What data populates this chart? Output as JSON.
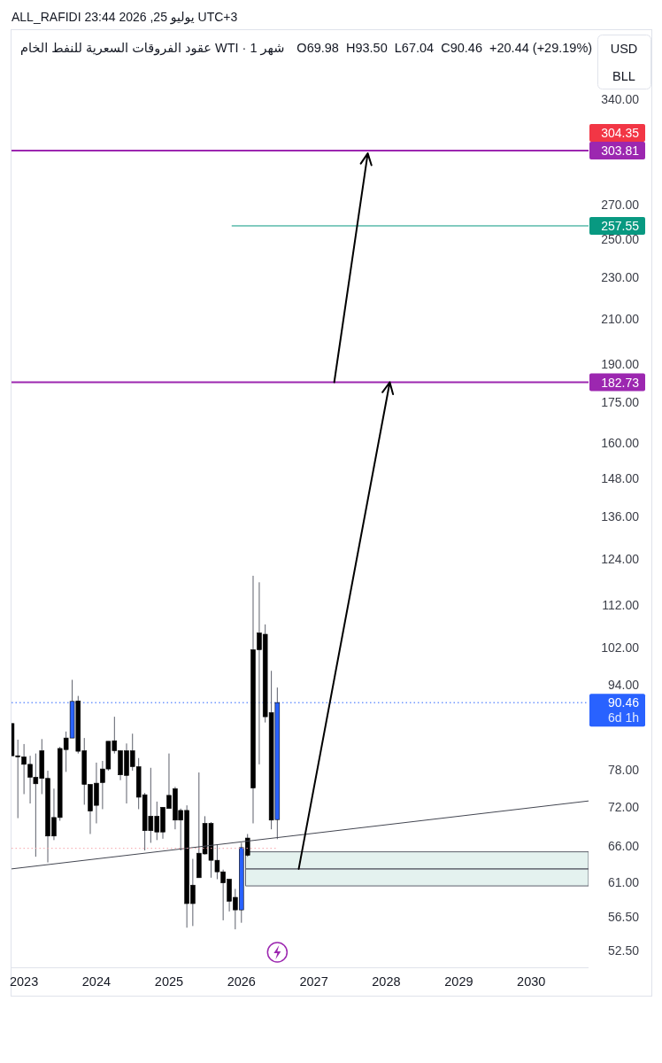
{
  "chart_data": {
    "type": "candlestick",
    "title": "عقود الفروقات السعرية للنفط الخام WTI · 1 شهر",
    "subtitle": "ALL_RAFIDI يوليو 25, 2026 23:44 UTC+3",
    "ylabel": "USD\nBLL",
    "annotations": [
      "O69.98  H93.50  L67.04  C90.46  +20.44 (+29.19%)",
      "304.35"
    ],
    "x": [
      "2022-11",
      "2022-12",
      "2023-01",
      "2023-02",
      "2023-03",
      "2023-04",
      "2023-05",
      "2023-06",
      "2023-07",
      "2023-08",
      "2023-09",
      "2023-10",
      "2023-11",
      "2023-12",
      "2024-01",
      "2024-02",
      "2024-03",
      "2024-04",
      "2024-05",
      "2024-06",
      "2024-07",
      "2024-08",
      "2024-09",
      "2024-10",
      "2024-11",
      "2024-12",
      "2025-01",
      "2025-02",
      "2025-03",
      "2025-04",
      "2025-05",
      "2025-06",
      "2025-07",
      "2025-08",
      "2025-09",
      "2025-10",
      "2025-11",
      "2025-12",
      "2026-01",
      "2026-02",
      "2026-03",
      "2026-04",
      "2026-05",
      "2026-06",
      "2026-07"
    ],
    "ohlc": [
      [
        86.4,
        86.4,
        80.5,
        80.5
      ],
      [
        80.5,
        83.4,
        70.2,
        80.3
      ],
      [
        80.3,
        82.6,
        74.0,
        79.0
      ],
      [
        79.0,
        80.5,
        72.5,
        76.8
      ],
      [
        76.8,
        80.9,
        64.5,
        75.7
      ],
      [
        81.4,
        83.5,
        74.0,
        76.6
      ],
      [
        76.6,
        77.9,
        63.7,
        67.5
      ],
      [
        70.3,
        74.9,
        66.9,
        67.5
      ],
      [
        81.8,
        82.1,
        69.8,
        70.3
      ],
      [
        83.7,
        84.9,
        77.7,
        81.6
      ],
      [
        83.7,
        95.1,
        83.7,
        90.7
      ],
      [
        90.8,
        91.8,
        80.9,
        81.3
      ],
      [
        81.4,
        83.7,
        72.3,
        75.6
      ],
      [
        75.6,
        75.6,
        67.8,
        71.3
      ],
      [
        75.8,
        79.3,
        69.4,
        72.2
      ],
      [
        78.2,
        79.6,
        71.6,
        75.9
      ],
      [
        83.1,
        83.1,
        77.9,
        78.2
      ],
      [
        83.2,
        87.7,
        80.9,
        81.4
      ],
      [
        81.4,
        81.5,
        76.3,
        77.2
      ],
      [
        81.4,
        82.7,
        72.5,
        77.1
      ],
      [
        81.4,
        84.5,
        77.9,
        78.6
      ],
      [
        78.6,
        80.1,
        71.6,
        73.5
      ],
      [
        73.9,
        74.2,
        65.4,
        68.3
      ],
      [
        70.5,
        78.4,
        66.5,
        68.3
      ],
      [
        70.5,
        72.8,
        66.9,
        68.1
      ],
      [
        71.9,
        71.9,
        67.1,
        68.1
      ],
      [
        73.8,
        80.9,
        71.7,
        71.7
      ],
      [
        74.9,
        75.2,
        68.5,
        69.9
      ],
      [
        71.4,
        71.7,
        65.4,
        69.9
      ],
      [
        71.4,
        72.2,
        55.2,
        58.2
      ],
      [
        60.6,
        64.2,
        55.4,
        58.2
      ],
      [
        65.0,
        77.6,
        61.6,
        61.6
      ],
      [
        69.4,
        70.5,
        64.8,
        64.9
      ],
      [
        69.4,
        69.6,
        61.6,
        64.0
      ],
      [
        64.0,
        66.3,
        61.4,
        62.4
      ],
      [
        62.4,
        62.7,
        56.1,
        60.9
      ],
      [
        61.4,
        61.4,
        57.2,
        58.5
      ],
      [
        59.0,
        60.1,
        55.0,
        57.4
      ],
      [
        57.4,
        66.5,
        55.8,
        65.8
      ],
      [
        67.2,
        67.8,
        64.5,
        64.7
      ],
      [
        101.6,
        119.5,
        69.4,
        75.0
      ],
      [
        105.4,
        117.8,
        79.0,
        101.6
      ],
      [
        105.1,
        107.4,
        86.6,
        87.7
      ],
      [
        88.5,
        97.0,
        68.5,
        69.9
      ],
      [
        69.98,
        93.5,
        67.04,
        90.46
      ]
    ],
    "colors": [
      "#000000",
      "#000000",
      "#000000",
      "#000000",
      "#000000",
      "#000000",
      "#000000",
      "#000000",
      "#000000",
      "#000000",
      "#2962ff",
      "#000000",
      "#000000",
      "#000000",
      "#000000",
      "#000000",
      "#000000",
      "#000000",
      "#000000",
      "#000000",
      "#000000",
      "#000000",
      "#000000",
      "#000000",
      "#000000",
      "#000000",
      "#000000",
      "#000000",
      "#000000",
      "#000000",
      "#000000",
      "#000000",
      "#000000",
      "#000000",
      "#000000",
      "#000000",
      "#000000",
      "#000000",
      "#2962ff",
      "#000000",
      "#000000",
      "#000000",
      "#000000",
      "#000000",
      "#2962ff"
    ],
    "log": "y",
    "xlim": [
      "2022-10-30",
      "2030-10-17"
    ],
    "xticks": [
      {
        "value": "2023-01",
        "label": "2023"
      },
      {
        "value": "2024-01",
        "label": "2024"
      },
      {
        "value": "2025-01",
        "label": "2025"
      },
      {
        "value": "2026-01",
        "label": "2026"
      },
      {
        "value": "2027-01",
        "label": "2027"
      },
      {
        "value": "2028-01",
        "label": "2028"
      },
      {
        "value": "2029-01",
        "label": "2029"
      },
      {
        "value": "2030-01",
        "label": "2030"
      }
    ],
    "ylim": [
      50.6,
      395
    ],
    "yticks": [
      {
        "value": 52.5,
        "label": "52.50"
      },
      {
        "value": 56.5,
        "label": "56.50"
      },
      {
        "value": 61,
        "label": "61.00"
      },
      {
        "value": 66,
        "label": "66.00"
      },
      {
        "value": 72,
        "label": "72.00"
      },
      {
        "value": 78,
        "label": "78.00"
      },
      {
        "value": 94,
        "label": "94.00"
      },
      {
        "value": 102,
        "label": "102.00"
      },
      {
        "value": 112,
        "label": "112.00"
      },
      {
        "value": 124,
        "label": "124.00"
      },
      {
        "value": 136,
        "label": "136.00"
      },
      {
        "value": 148,
        "label": "148.00"
      },
      {
        "value": 160,
        "label": "160.00"
      },
      {
        "value": 175,
        "label": "175.00"
      },
      {
        "value": 190,
        "label": "190.00"
      },
      {
        "value": 210,
        "label": "210.00"
      },
      {
        "value": 230,
        "label": "230.00"
      },
      {
        "value": 250,
        "label": "250.00"
      },
      {
        "value": 270,
        "label": "270.00"
      },
      {
        "value": 340,
        "label": "340.00"
      }
    ],
    "ref_lines": [
      {
        "axis": "y",
        "value": 303.81,
        "label": "303.81",
        "color": "#9c27b0"
      },
      {
        "axis": "y",
        "value": 182.73,
        "label": "182.73",
        "color": "#9c27b0"
      },
      {
        "axis": "y",
        "value": 90.46,
        "label": "90.46\n6d 1h",
        "color": "#2962ff",
        "line_style": "dotted"
      }
    ],
    "series": [
      {
        "type": "line",
        "x": [
          "2026-01-22",
          "2030-10-17"
        ],
        "values": [
          62.8,
          62.8
        ],
        "lower": [
          60.5,
          60.5
        ],
        "upper": [
          65.2,
          65.2
        ],
        "color": "#5d606b"
      },
      {
        "type": "line",
        "x": [
          "2022-10-30",
          "2030-10-17"
        ],
        "values": [
          62.8,
          72.9
        ],
        "color": "#434651"
      },
      {
        "type": "line",
        "x": [
          "2022-10-30",
          "2026-07-03"
        ],
        "values": [
          65.7,
          65.7
        ],
        "color": "#f5a3a9",
        "line_style": "dotted"
      },
      {
        "type": "line",
        "x": [
          "2025-11-13",
          "2030-10-17"
        ],
        "values": [
          257.55,
          257.55
        ],
        "color": "#089981",
        "value_labels": [
          null,
          "257.55"
        ]
      },
      {
        "type": "line",
        "x": [
          "2026-10-17",
          "2028-01-19"
        ],
        "values": [
          62.8,
          182.73
        ],
        "color": "#000000"
      },
      {
        "type": "line",
        "x": [
          "2027-04-14",
          "2027-09-30"
        ],
        "values": [
          182.73,
          302
        ],
        "color": "#000000"
      }
    ]
  }
}
